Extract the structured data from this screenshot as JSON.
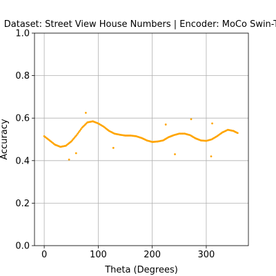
{
  "chart_data": {
    "type": "scatter",
    "title": "Dataset: Street View House Numbers | Encoder: MoCo Swin-T",
    "xlabel": "Theta (Degrees)",
    "ylabel": "Accuracy",
    "xlim": [
      -18,
      378
    ],
    "ylim": [
      0.0,
      1.0
    ],
    "xticks": [
      0,
      100,
      200,
      300
    ],
    "yticks": [
      0.0,
      0.2,
      0.4,
      0.6,
      0.8,
      1.0
    ],
    "xtick_labels": [
      "0",
      "100",
      "200",
      "300"
    ],
    "ytick_labels": [
      "0.0",
      "0.2",
      "0.4",
      "0.6",
      "0.8",
      "1.0"
    ],
    "grid": true,
    "marker_color": "#ffa500",
    "curve_knots": {
      "x": [
        0,
        10,
        20,
        30,
        40,
        50,
        60,
        70,
        80,
        90,
        100,
        110,
        120,
        130,
        140,
        150,
        160,
        170,
        180,
        190,
        200,
        210,
        220,
        230,
        240,
        250,
        260,
        270,
        280,
        290,
        300,
        310,
        320,
        330,
        340,
        350,
        358
      ],
      "y": [
        0.515,
        0.495,
        0.475,
        0.465,
        0.47,
        0.49,
        0.52,
        0.555,
        0.58,
        0.585,
        0.575,
        0.56,
        0.54,
        0.527,
        0.522,
        0.518,
        0.518,
        0.515,
        0.507,
        0.495,
        0.488,
        0.49,
        0.495,
        0.51,
        0.52,
        0.527,
        0.527,
        0.52,
        0.505,
        0.495,
        0.493,
        0.5,
        0.515,
        0.533,
        0.545,
        0.54,
        0.53
      ]
    },
    "outliers": [
      {
        "x": 46,
        "y": 0.405
      },
      {
        "x": 59,
        "y": 0.435
      },
      {
        "x": 77,
        "y": 0.625
      },
      {
        "x": 128,
        "y": 0.46
      },
      {
        "x": 225,
        "y": 0.57
      },
      {
        "x": 242,
        "y": 0.43
      },
      {
        "x": 272,
        "y": 0.595
      },
      {
        "x": 309,
        "y": 0.42
      },
      {
        "x": 311,
        "y": 0.575
      }
    ]
  }
}
